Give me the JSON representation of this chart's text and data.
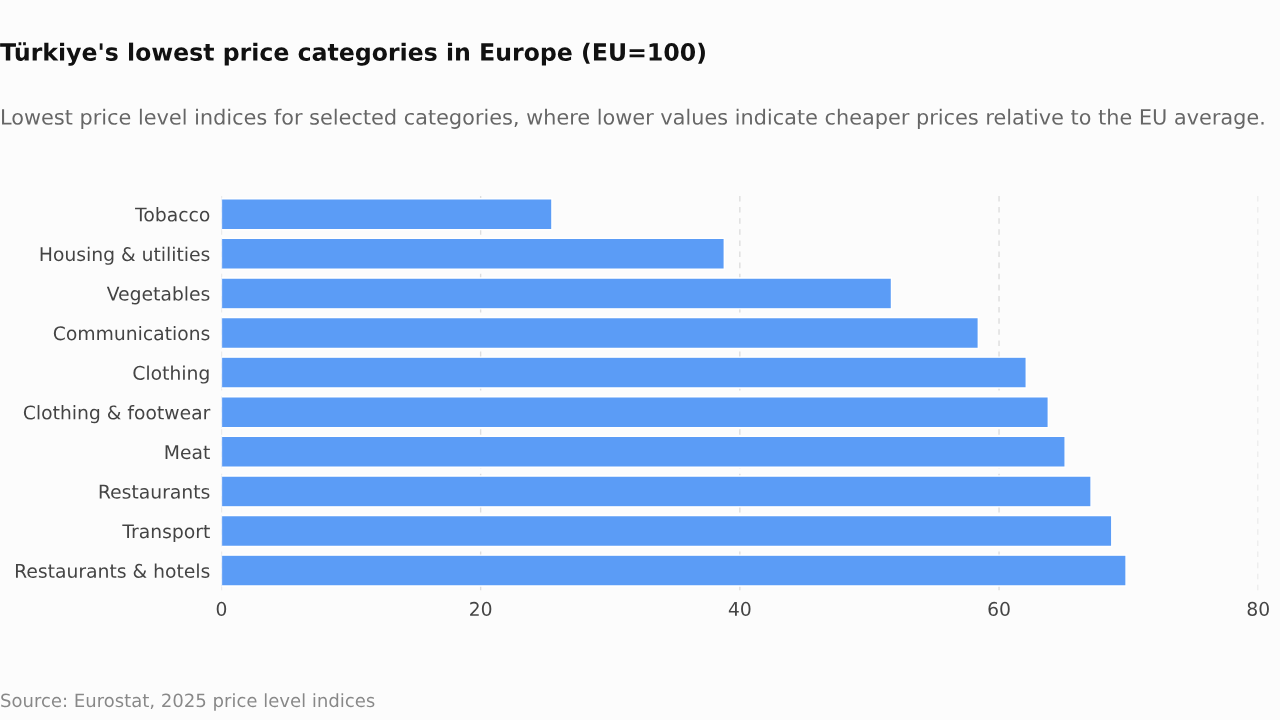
{
  "chart_data": {
    "type": "bar",
    "orientation": "horizontal",
    "title": "Türkiye's lowest price categories in Europe (EU=100)",
    "subtitle": "Lowest price level indices for selected categories, where lower values indicate cheaper prices relative to the EU average.",
    "categories": [
      "Tobacco",
      "Housing & utilities",
      "Vegetables",
      "Communications",
      "Clothing",
      "Clothing & footwear",
      "Meat",
      "Restaurants",
      "Transport",
      "Restaurants & hotels"
    ],
    "values": [
      25.5,
      38.8,
      51.7,
      58.4,
      62.1,
      63.8,
      65.1,
      67.1,
      68.7,
      69.8
    ],
    "color": "#5b9cf6",
    "xlim": [
      0,
      80
    ],
    "xticks": [
      0,
      20,
      40,
      60,
      80
    ],
    "grid": "x",
    "annotations": [
      "Source: Eurostat, 2025 price level indices"
    ]
  }
}
